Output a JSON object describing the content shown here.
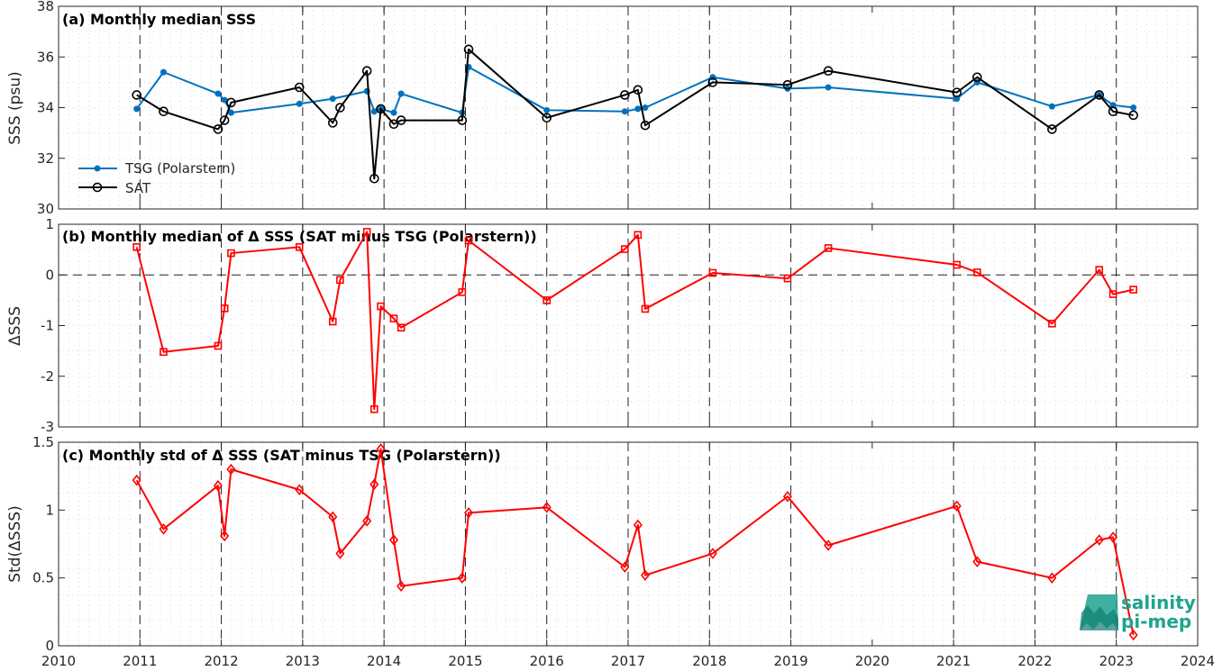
{
  "chart_data": [
    {
      "type": "line",
      "title": "(a) Monthly median SSS",
      "xlabel": "",
      "ylabel": "SSS (psu)",
      "xlim": [
        2010,
        2024
      ],
      "ylim": [
        30,
        38
      ],
      "yticks": [
        30,
        32,
        34,
        36,
        38
      ],
      "grid": "dotted minor grid",
      "legend": "bottom-left",
      "series": [
        {
          "name": "TSG (Polarstern)",
          "color": "#0072BD",
          "marker": "dot",
          "x": [
            2010.96,
            2011.29,
            2011.96,
            2012.04,
            2012.12,
            2012.96,
            2013.37,
            2013.79,
            2013.88,
            2013.96,
            2014.12,
            2014.21,
            2014.96,
            2015.04,
            2016.0,
            2016.96,
            2017.12,
            2017.21,
            2018.04,
            2018.96,
            2019.46,
            2021.04,
            2021.29,
            2022.21,
            2022.79,
            2022.96,
            2023.21
          ],
          "y": [
            33.95,
            35.4,
            34.55,
            34.3,
            33.8,
            34.15,
            34.35,
            34.65,
            33.85,
            33.95,
            33.8,
            34.55,
            33.8,
            35.6,
            33.9,
            33.85,
            33.95,
            34.0,
            35.2,
            34.75,
            34.8,
            34.35,
            35.0,
            34.05,
            34.5,
            34.1,
            34.0
          ]
        },
        {
          "name": "SAT",
          "color": "#000000",
          "marker": "circle",
          "x": [
            2010.96,
            2011.29,
            2011.96,
            2012.04,
            2012.12,
            2012.96,
            2013.37,
            2013.46,
            2013.79,
            2013.88,
            2013.96,
            2014.12,
            2014.21,
            2014.96,
            2015.04,
            2016.0,
            2016.96,
            2017.12,
            2017.21,
            2018.04,
            2018.96,
            2019.46,
            2021.04,
            2021.29,
            2022.21,
            2022.79,
            2022.96,
            2023.21
          ],
          "y": [
            34.5,
            33.85,
            33.15,
            33.5,
            34.2,
            34.8,
            33.4,
            34.0,
            35.45,
            31.2,
            33.95,
            33.35,
            33.5,
            33.5,
            36.3,
            33.6,
            34.5,
            34.7,
            33.3,
            35.0,
            34.9,
            35.45,
            34.6,
            35.2,
            33.15,
            34.5,
            33.85,
            33.7
          ]
        }
      ]
    },
    {
      "type": "line",
      "title": "(b) Monthly median of Δ SSS (SAT minus TSG (Polarstern))",
      "xlabel": "",
      "ylabel": "ΔSSS",
      "xlim": [
        2010,
        2024
      ],
      "ylim": [
        -3,
        1
      ],
      "yticks": [
        -3,
        -2,
        -1,
        0,
        1
      ],
      "reference_line": 0,
      "grid": "dotted minor grid",
      "series": [
        {
          "color": "#FF0000",
          "marker": "square",
          "x": [
            2010.96,
            2011.29,
            2011.96,
            2012.04,
            2012.12,
            2012.96,
            2013.37,
            2013.46,
            2013.79,
            2013.88,
            2013.96,
            2014.12,
            2014.21,
            2014.96,
            2015.04,
            2016.0,
            2016.96,
            2017.12,
            2017.21,
            2018.04,
            2018.96,
            2019.46,
            2021.04,
            2021.29,
            2022.21,
            2022.79,
            2022.96,
            2023.21
          ],
          "y": [
            0.55,
            -1.52,
            -1.4,
            -0.66,
            0.43,
            0.55,
            -0.92,
            -0.1,
            0.85,
            -2.65,
            -0.62,
            -0.86,
            -1.04,
            -0.34,
            0.68,
            -0.5,
            0.51,
            0.79,
            -0.67,
            0.04,
            -0.07,
            0.53,
            0.2,
            0.05,
            -0.96,
            0.1,
            -0.38,
            -0.29
          ]
        }
      ]
    },
    {
      "type": "line",
      "title": "(c) Monthly std of Δ SSS (SAT minus TSG (Polarstern))",
      "xlabel": "",
      "ylabel": "Std(ΔSSS)",
      "xlim": [
        2010,
        2024
      ],
      "ylim": [
        0,
        1.5
      ],
      "yticks": [
        0,
        0.5,
        1,
        1.5
      ],
      "grid": "dotted minor grid",
      "series": [
        {
          "color": "#FF0000",
          "marker": "diamond",
          "x": [
            2010.96,
            2011.29,
            2011.96,
            2012.04,
            2012.12,
            2012.96,
            2013.37,
            2013.46,
            2013.79,
            2013.88,
            2013.96,
            2014.12,
            2014.21,
            2014.96,
            2015.04,
            2016.0,
            2016.96,
            2017.12,
            2017.21,
            2018.04,
            2018.96,
            2019.46,
            2021.04,
            2021.29,
            2022.21,
            2022.79,
            2022.96,
            2023.21
          ],
          "y": [
            1.22,
            0.86,
            1.18,
            0.81,
            1.3,
            1.15,
            0.95,
            0.68,
            0.92,
            1.19,
            1.45,
            0.78,
            0.44,
            0.5,
            0.98,
            1.02,
            0.58,
            0.89,
            0.52,
            0.68,
            1.1,
            0.74,
            1.03,
            0.62,
            0.5,
            0.78,
            0.8,
            0.08
          ]
        }
      ]
    }
  ],
  "xticks": [
    2010,
    2011,
    2012,
    2013,
    2014,
    2015,
    2016,
    2017,
    2018,
    2019,
    2020,
    2021,
    2022,
    2023,
    2024
  ],
  "year_dashes": [
    2011,
    2012,
    2013,
    2014,
    2015,
    2016,
    2017,
    2018,
    2019,
    2021,
    2022,
    2023
  ],
  "logo": {
    "line1": "salinity",
    "line2": "pi-mep",
    "color": "#1fa38f"
  }
}
